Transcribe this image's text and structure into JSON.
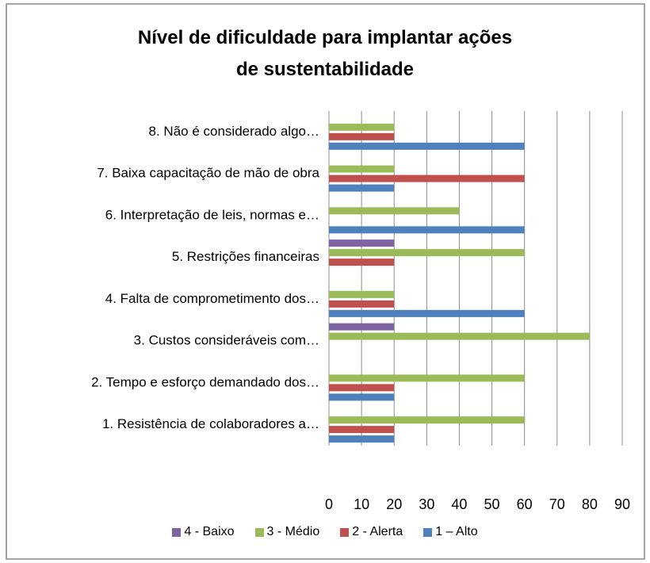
{
  "chart_data": {
    "type": "bar",
    "orientation": "horizontal",
    "title": "Nível de dificuldade para implantar ações de sustentabilidade",
    "categories": [
      "1. Resistência de colaboradores a…",
      "2. Tempo e esforço demandado dos…",
      "3. Custos consideráveis com…",
      "4. Falta de comprometimento dos…",
      "5. Restrições financeiras",
      "6. Interpretação de leis, normas e…",
      "7. Baixa capacitação de mão de obra",
      "8. Não é considerado algo…"
    ],
    "series": [
      {
        "name": "1 – Alto",
        "color": "#4f81bd",
        "values": [
          20,
          20,
          0,
          60,
          0,
          60,
          20,
          60
        ]
      },
      {
        "name": "2 - Alerta",
        "color": "#c0504d",
        "values": [
          20,
          20,
          0,
          20,
          20,
          0,
          60,
          20
        ]
      },
      {
        "name": "3 - Médio",
        "color": "#9bbb59",
        "values": [
          60,
          60,
          80,
          20,
          60,
          40,
          20,
          20
        ]
      },
      {
        "name": "4 - Baixo",
        "color": "#8064a2",
        "values": [
          0,
          0,
          20,
          0,
          20,
          0,
          0,
          0
        ]
      }
    ],
    "xlim": [
      0,
      90
    ],
    "xticks": [
      0,
      10,
      20,
      30,
      40,
      50,
      60,
      70,
      80,
      90
    ],
    "grid": true,
    "legend": "bottom"
  }
}
